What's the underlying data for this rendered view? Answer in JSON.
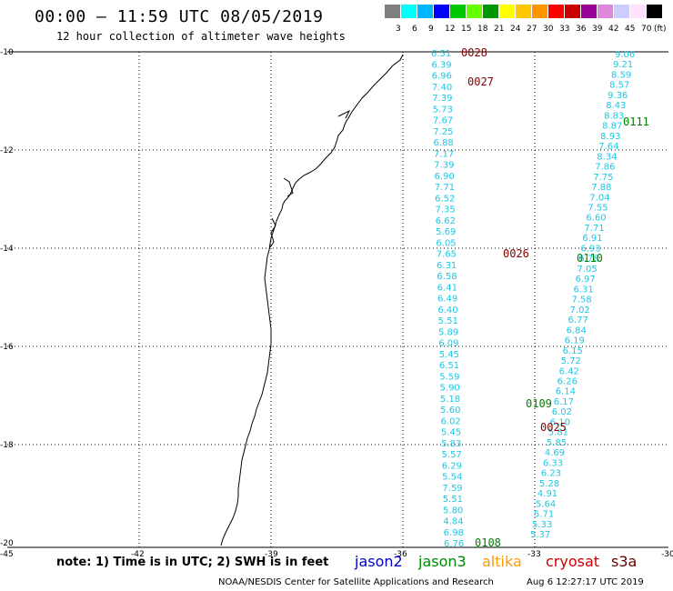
{
  "title": "00:00 – 11:59 UTC 08/05/2019",
  "subtitle": "12 hour collection of altimeter wave heights",
  "colorbar": {
    "colors": [
      "#7f7f7f",
      "#00ffff",
      "#00b7ff",
      "#0000ff",
      "#00c800",
      "#66ff00",
      "#009600",
      "#ffff00",
      "#ffc800",
      "#ff9600",
      "#ff0000",
      "#c80000",
      "#960096",
      "#dd88dd",
      "#ccccff",
      "#ffe1ff",
      "#000000"
    ],
    "labels": [
      "3",
      "6",
      "9",
      "12",
      "15",
      "18",
      "21",
      "24",
      "27",
      "30",
      "33",
      "36",
      "39",
      "42",
      "45",
      "70"
    ],
    "unit": "(ft)"
  },
  "axes": {
    "lat_ticks": [
      "-10",
      "-12",
      "-14",
      "-16",
      "-18",
      "-20"
    ],
    "lon_ticks": [
      "-45",
      "-42",
      "-39",
      "-36",
      "-33",
      "-30"
    ]
  },
  "passes": [
    {
      "id": "0028",
      "color": "#800000"
    },
    {
      "id": "0027",
      "color": "#800000"
    },
    {
      "id": "0111",
      "color": "#008000"
    },
    {
      "id": "0026",
      "color": "#800000"
    },
    {
      "id": "0110",
      "color": "#008000"
    },
    {
      "id": "0109",
      "color": "#008000"
    },
    {
      "id": "0025",
      "color": "#800000"
    },
    {
      "id": "0108",
      "color": "#008000"
    }
  ],
  "tracks": {
    "left": [
      "6.51",
      "6.39",
      "6.96",
      "7.40",
      "7.39",
      "5.73",
      "7.67",
      "7.25",
      "6.88",
      "7.17",
      "7.39",
      "6.90",
      "7.71",
      "6.52",
      "7.35",
      "6.62",
      "5.69",
      "6.05",
      "7.65",
      "6.31",
      "6.58",
      "6.41",
      "6.49",
      "6.40",
      "5.51",
      "5.89",
      "6.09",
      "5.45",
      "6.51",
      "5.59",
      "5.90",
      "5.18",
      "5.60",
      "6.02",
      "5.45",
      "5.83",
      "5.57",
      "6.29",
      "5.54",
      "7.59",
      "5.51",
      "5.80",
      "4.84",
      "6.98",
      "6.76"
    ],
    "right": [
      "9.06",
      "9.21",
      "8.59",
      "8.57",
      "9.36",
      "8.43",
      "8.83",
      "8.87",
      "8.93",
      "7.64",
      "8.34",
      "7.86",
      "7.75",
      "7.88",
      "7.04",
      "7.55",
      "6.60",
      "7.71",
      "6.91",
      "6.93",
      "6.78",
      "7.05",
      "6.97",
      "6.31",
      "7.58",
      "7.02",
      "6.77",
      "6.84",
      "6.19",
      "6.15",
      "5.72",
      "6.42",
      "6.26",
      "6.14",
      "6.17",
      "6.02",
      "6.10",
      "5.81",
      "5.85",
      "4.69",
      "6.33",
      "6.23",
      "5.28",
      "4.91",
      "5.64",
      "5.71",
      "5.33",
      "5.37"
    ]
  },
  "note": "note: 1) Time is in UTC; 2) SWH is in feet",
  "satellites": [
    {
      "name": "jason2",
      "color": "#0000cc"
    },
    {
      "name": "jason3",
      "color": "#008800"
    },
    {
      "name": "altika",
      "color": "#ff9900"
    },
    {
      "name": "cryosat",
      "color": "#cc0000"
    },
    {
      "name": "s3a",
      "color": "#660000"
    }
  ],
  "footer": "NOAA/NESDIS Center for Satellite Applications and Research",
  "timestamp": "Aug  6 12:27:17 UTC 2019"
}
